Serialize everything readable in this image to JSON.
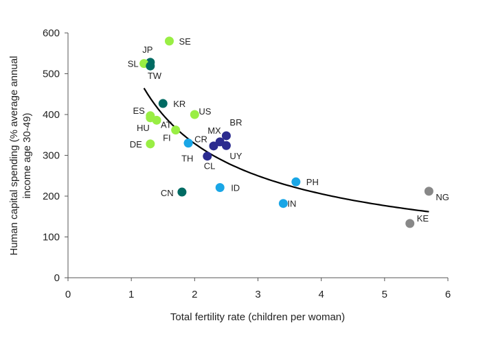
{
  "chart_data": {
    "type": "scatter",
    "title": "",
    "xlabel": "Total fertility rate (children per woman)",
    "ylabel_lines": [
      "Human capital spending (% average annual",
      "income age 30-49)"
    ],
    "xlim": [
      0,
      6
    ],
    "ylim": [
      0,
      600
    ],
    "x_ticks": [
      "0",
      "1",
      "2",
      "3",
      "4",
      "5",
      "6"
    ],
    "y_ticks": [
      "0",
      "100",
      "200",
      "300",
      "400",
      "500",
      "600"
    ],
    "grid": false,
    "legend": "none",
    "colors": {
      "lime": "#99ee44",
      "teal": "#006b63",
      "navy": "#2b2b8f",
      "sky": "#19a6e6",
      "gray": "#888888",
      "trend": "#000000",
      "axis": "#555555"
    },
    "points": [
      {
        "label": "SE",
        "x": 1.6,
        "y": 580,
        "color": "lime"
      },
      {
        "label": "JP",
        "x": 1.3,
        "y": 528,
        "color": "teal"
      },
      {
        "label": "SL",
        "x": 1.2,
        "y": 525,
        "color": "lime"
      },
      {
        "label": "TW",
        "x": 1.3,
        "y": 519,
        "color": "teal"
      },
      {
        "label": "KR",
        "x": 1.5,
        "y": 427,
        "color": "teal"
      },
      {
        "label": "US",
        "x": 2.0,
        "y": 400,
        "color": "lime"
      },
      {
        "label": "ES",
        "x": 1.3,
        "y": 397,
        "color": "lime"
      },
      {
        "label": "HU",
        "x": 1.3,
        "y": 392,
        "color": "lime"
      },
      {
        "label": "AT",
        "x": 1.4,
        "y": 386,
        "color": "lime"
      },
      {
        "label": "FI",
        "x": 1.7,
        "y": 362,
        "color": "lime"
      },
      {
        "label": "DE",
        "x": 1.3,
        "y": 328,
        "color": "lime"
      },
      {
        "label": "CR",
        "x": 1.9,
        "y": 330,
        "color": "sky"
      },
      {
        "label": "TH",
        "x": 1.9,
        "y": 330,
        "color": "sky"
      },
      {
        "label": "BR",
        "x": 2.5,
        "y": 348,
        "color": "navy"
      },
      {
        "label": "MX",
        "x": 2.4,
        "y": 333,
        "color": "navy"
      },
      {
        "label": "",
        "x": 2.3,
        "y": 323,
        "color": "navy"
      },
      {
        "label": "UY",
        "x": 2.5,
        "y": 324,
        "color": "navy"
      },
      {
        "label": "CL",
        "x": 2.2,
        "y": 298,
        "color": "navy"
      },
      {
        "label": "ID",
        "x": 2.4,
        "y": 221,
        "color": "sky"
      },
      {
        "label": "CN",
        "x": 1.8,
        "y": 210,
        "color": "teal"
      },
      {
        "label": "PH",
        "x": 3.6,
        "y": 235,
        "color": "sky"
      },
      {
        "label": "IN",
        "x": 3.4,
        "y": 182,
        "color": "sky"
      },
      {
        "label": "NG",
        "x": 5.7,
        "y": 212,
        "color": "gray"
      },
      {
        "label": "KE",
        "x": 5.4,
        "y": 133,
        "color": "gray"
      }
    ],
    "trendline": {
      "type": "power",
      "a": 525.6,
      "b": -0.677,
      "x_range": [
        1.2,
        5.7
      ]
    }
  }
}
